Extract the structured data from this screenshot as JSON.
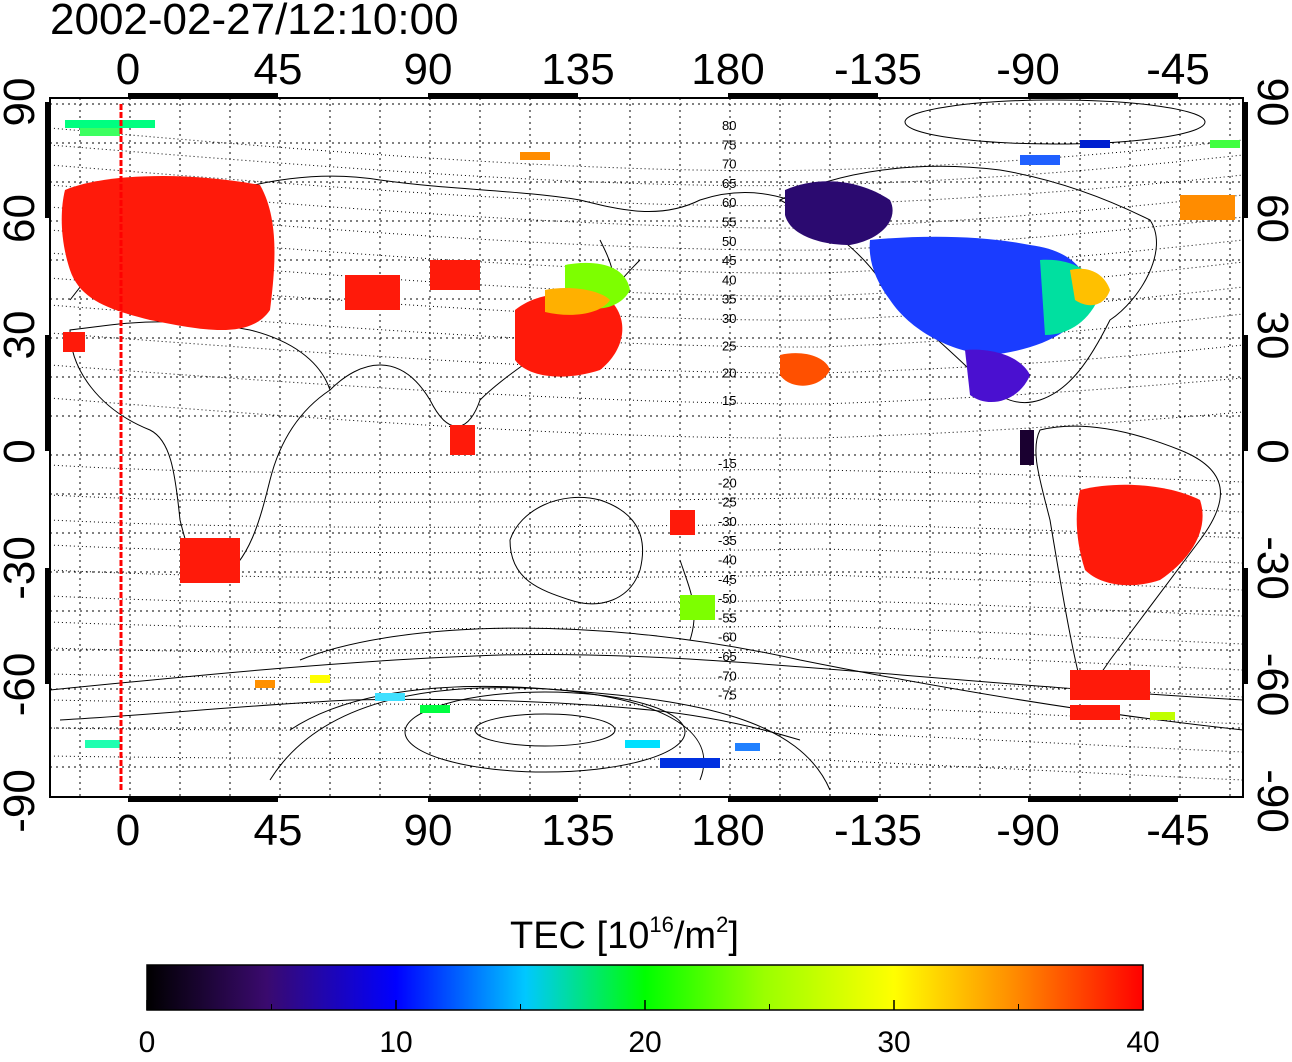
{
  "title": "2002-02-27/12:10:00",
  "map": {
    "top_lon_labels": [
      "0",
      "45",
      "90",
      "135",
      "180",
      "-135",
      "-90",
      "-45"
    ],
    "bottom_lon_labels": [
      "0",
      "45",
      "90",
      "135",
      "180",
      "-135",
      "-90",
      "-45"
    ],
    "left_lat_labels": [
      "90",
      "60",
      "30",
      "0",
      "-30",
      "-60",
      "-90"
    ],
    "right_lat_labels": [
      "90",
      "60",
      "30",
      "0",
      "-30",
      "-60",
      "-90"
    ],
    "north_mag_lat_labels": [
      "80",
      "75",
      "70",
      "65",
      "60",
      "55",
      "50",
      "45",
      "40",
      "35",
      "30",
      "25",
      "20",
      "15"
    ],
    "south_mag_lat_labels": [
      "-15",
      "-20",
      "-25",
      "-30",
      "-35",
      "-40",
      "-45",
      "-50",
      "-55",
      "-60",
      "-65",
      "-70",
      "-75"
    ],
    "terminator_color": "#ff0000"
  },
  "colorbar": {
    "label_main": "TEC  [10",
    "label_exp1": "16",
    "label_mid": "/m",
    "label_exp2": "2",
    "label_end": "]",
    "tick_labels": [
      "0",
      "10",
      "20",
      "30",
      "40"
    ],
    "range": [
      0,
      40
    ],
    "colors": [
      "#000000",
      "#4b0082",
      "#0000ff",
      "#00ffff",
      "#00ff00",
      "#ffff00",
      "#ff8c00",
      "#ff0000"
    ]
  }
}
